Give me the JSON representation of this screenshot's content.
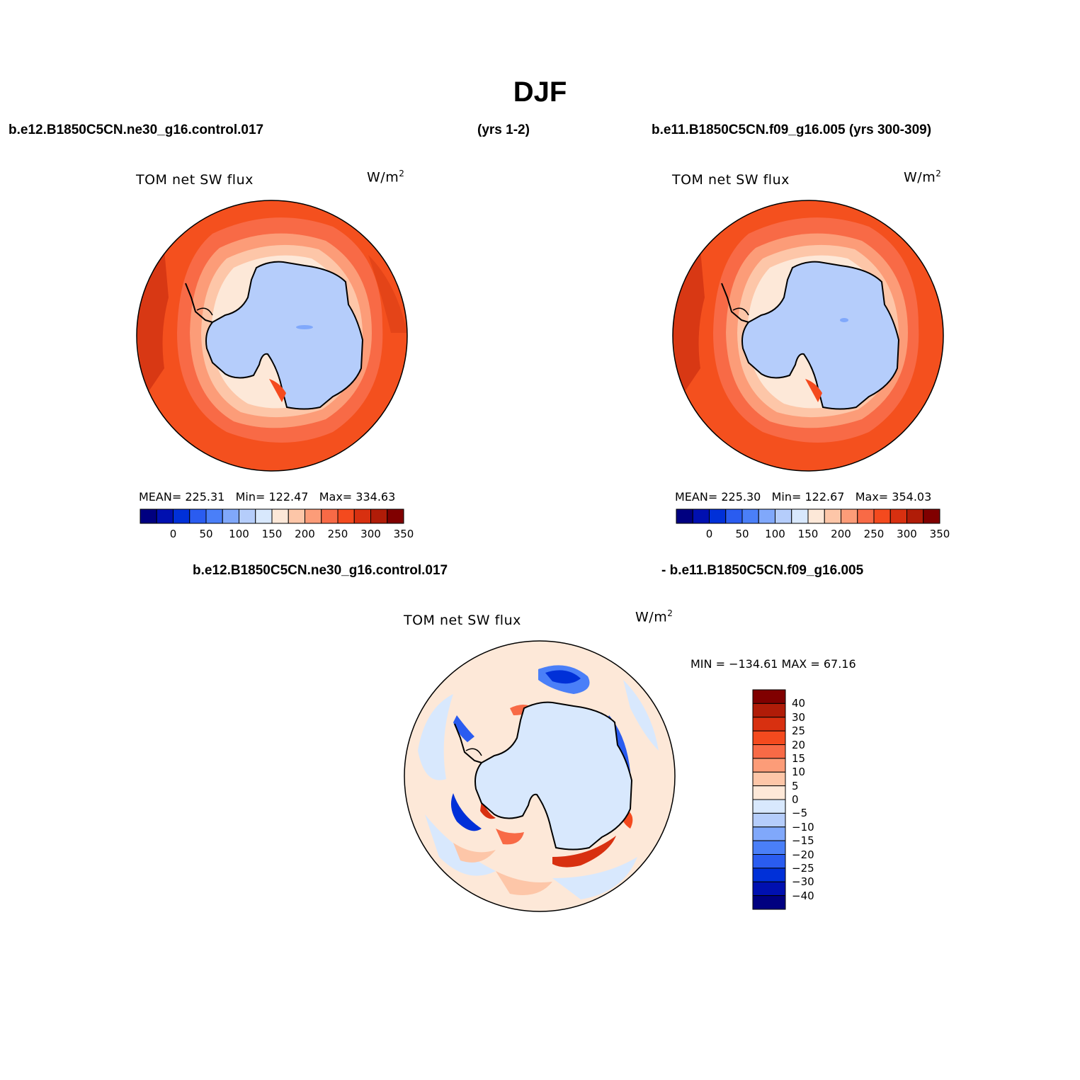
{
  "title": "DJF",
  "header": {
    "case_left": "b.e12.B1850C5CN.ne30_g16.control.017",
    "years_left": "(yrs 1-2)",
    "case_right": "b.e11.B1850C5CN.f09_g16.005 (yrs 300-309)",
    "diff_left": "b.e12.B1850C5CN.ne30_g16.control.017",
    "diff_right": "- b.e11.B1850C5CN.f09_g16.005"
  },
  "panels": [
    {
      "variable": "TOM net SW flux",
      "units": "W/m",
      "units_sup": "2",
      "stats": {
        "mean_label": "MEAN=",
        "mean": "225.31",
        "min_label": "Min=",
        "min": "122.47",
        "max_label": "Max=",
        "max": "334.63"
      }
    },
    {
      "variable": "TOM net SW flux",
      "units": "W/m",
      "units_sup": "2",
      "stats": {
        "mean_label": "MEAN=",
        "mean": "225.30",
        "min_label": "Min=",
        "min": "122.67",
        "max_label": "Max=",
        "max": "354.03"
      }
    }
  ],
  "field_colorbar": {
    "ticks": [
      "0",
      "50",
      "100",
      "150",
      "200",
      "250",
      "300",
      "350"
    ],
    "colors": [
      "#000080",
      "#0010b0",
      "#0030d8",
      "#2a5cf0",
      "#4a7ff8",
      "#80a8fb",
      "#b5cdfb",
      "#d8e8fd",
      "#fde8d8",
      "#fdc6a8",
      "#fc9c78",
      "#f86a46",
      "#f44a1e",
      "#d83010",
      "#b01c08",
      "#800000"
    ]
  },
  "diff_panel": {
    "variable": "TOM net SW flux",
    "units": "W/m",
    "units_sup": "2",
    "minmax_text": "MIN = −134.61 MAX =   67.16",
    "colorbar": {
      "labels": [
        "40",
        "30",
        "25",
        "20",
        "15",
        "10",
        "5",
        "0",
        "−5",
        "−10",
        "−15",
        "−20",
        "−25",
        "−30",
        "−40"
      ],
      "colors": [
        "#800000",
        "#b01c08",
        "#d83010",
        "#f44a1e",
        "#f86a46",
        "#fc9c78",
        "#fdc6a8",
        "#fde8d8",
        "#d8e8fd",
        "#b5cdfb",
        "#80a8fb",
        "#4a7ff8",
        "#2a5cf0",
        "#0030d8",
        "#0010b0",
        "#000080"
      ]
    }
  }
}
